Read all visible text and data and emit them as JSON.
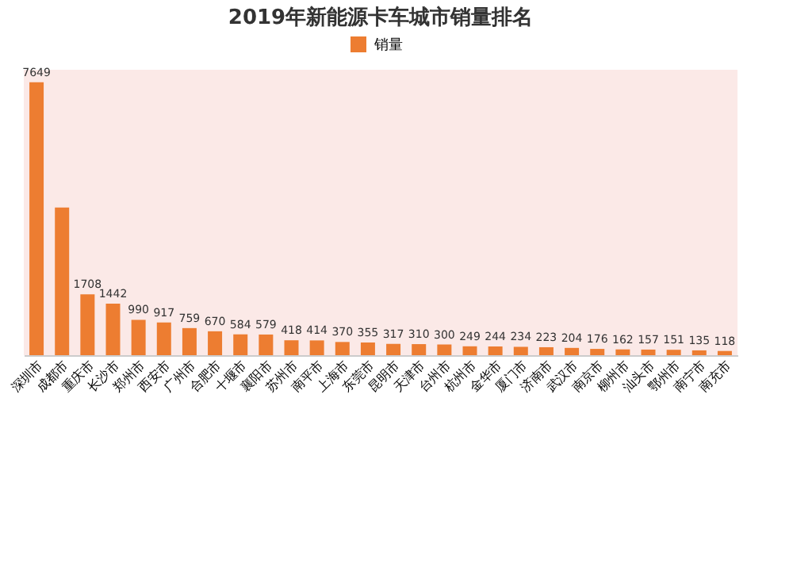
{
  "chart_data": {
    "type": "bar",
    "title": "2019年新能源卡车城市销量排名",
    "categories": [
      "深圳市",
      "成都市",
      "重庆市",
      "长沙市",
      "郑州市",
      "西安市",
      "广州市",
      "合肥市",
      "十堰市",
      "襄阳市",
      "苏州市",
      "南平市",
      "上海市",
      "东莞市",
      "昆明市",
      "天津市",
      "台州市",
      "杭州市",
      "金华市",
      "厦门市",
      "济南市",
      "武汉市",
      "南京市",
      "柳州市",
      "汕头市",
      "鄂州市",
      "南宁市",
      "南充市"
    ],
    "series": [
      {
        "name": "销量",
        "color": "#ed7d31",
        "values": [
          7649,
          4140,
          1708,
          1442,
          990,
          917,
          759,
          670,
          584,
          579,
          418,
          414,
          370,
          355,
          317,
          310,
          300,
          249,
          244,
          234,
          223,
          204,
          176,
          162,
          157,
          151,
          135,
          118
        ],
        "value_labels": [
          "7649",
          null,
          "1708",
          "1442",
          "990",
          "917",
          "759",
          "670",
          "584",
          "579",
          "418",
          "414",
          "370",
          "355",
          "317",
          "310",
          "300",
          "249",
          "244",
          "234",
          "223",
          "204",
          "176",
          "162",
          "157",
          "151",
          "135",
          "118"
        ]
      }
    ],
    "legend": "top",
    "grid": false
  }
}
